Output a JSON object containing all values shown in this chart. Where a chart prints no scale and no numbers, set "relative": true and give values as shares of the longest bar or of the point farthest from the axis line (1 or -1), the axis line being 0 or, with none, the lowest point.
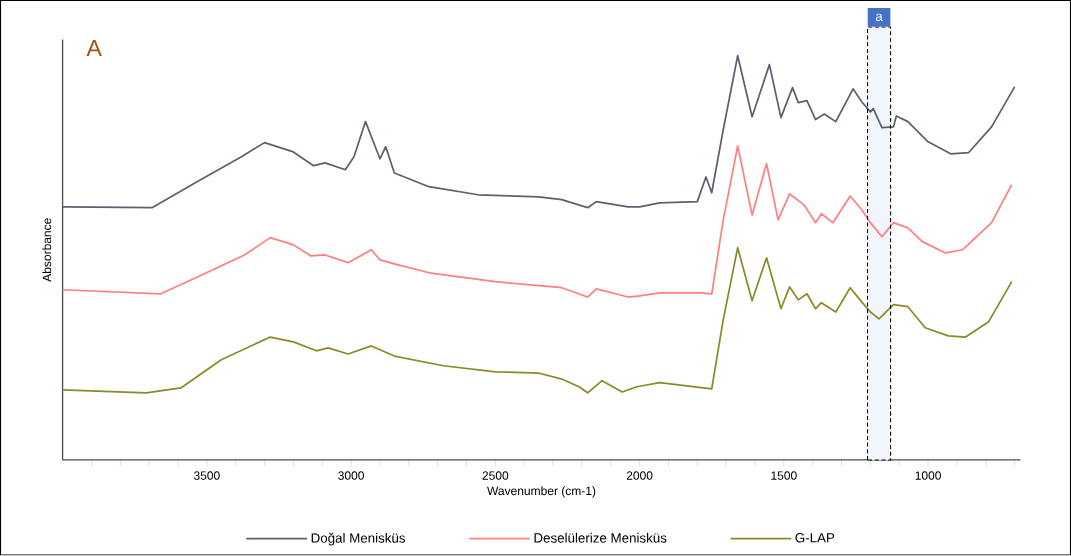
{
  "chart_data": {
    "type": "line",
    "relative": true,
    "xlabel": "Wavenumber (cm-1)",
    "ylabel": "Absorbance",
    "legend": "bottom",
    "xlim": [
      4000,
      680
    ],
    "xticks": [
      {
        "value": 3900,
        "label": null
      },
      {
        "value": 3800,
        "label": null
      },
      {
        "value": 3700,
        "label": null
      },
      {
        "value": 3600,
        "label": null
      },
      3500,
      {
        "value": 3400,
        "label": null
      },
      {
        "value": 3300,
        "label": null
      },
      {
        "value": 3200,
        "label": null
      },
      {
        "value": 3100,
        "label": null
      },
      3000,
      {
        "value": 2900,
        "label": null
      },
      {
        "value": 2800,
        "label": null
      },
      {
        "value": 2700,
        "label": null
      },
      {
        "value": 2600,
        "label": null
      },
      2500,
      {
        "value": 2400,
        "label": null
      },
      {
        "value": 2300,
        "label": null
      },
      {
        "value": 2200,
        "label": null
      },
      {
        "value": 2100,
        "label": null
      },
      2000,
      {
        "value": 1900,
        "label": null
      },
      {
        "value": 1800,
        "label": null
      },
      {
        "value": 1700,
        "label": null
      },
      {
        "value": 1600,
        "label": null
      },
      1500,
      {
        "value": 1400,
        "label": null
      },
      {
        "value": 1300,
        "label": null
      },
      {
        "value": 1200,
        "label": null
      },
      {
        "value": 1100,
        "label": null
      },
      1000,
      {
        "value": 900,
        "label": null
      },
      {
        "value": 800,
        "label": null
      },
      {
        "value": 700,
        "label": null
      }
    ],
    "annotations": [
      "A"
    ],
    "bands": [
      {
        "axis": "x",
        "from": 1210,
        "to": 1130,
        "label": "a",
        "color": "#f2f5fb"
      }
    ],
    "series": [
      {
        "name": "Doğal Menisküs",
        "color": "#5b6170",
        "x": [
          4000,
          3690,
          3540,
          3380,
          3300,
          3200,
          3130,
          3090,
          3020,
          2990,
          2950,
          2900,
          2880,
          2850,
          2730,
          2560,
          2350,
          2270,
          2180,
          2150,
          2040,
          2000,
          1930,
          1800,
          1770,
          1750,
          1710,
          1660,
          1610,
          1550,
          1510,
          1470,
          1450,
          1420,
          1390,
          1360,
          1320,
          1260,
          1230,
          1200,
          1190,
          1160,
          1120,
          1110,
          1070,
          1000,
          920,
          860,
          780,
          700
        ],
        "values": [
          0.626,
          0.624,
          0.686,
          0.75,
          0.785,
          0.762,
          0.728,
          0.735,
          0.718,
          0.75,
          0.837,
          0.745,
          0.775,
          0.71,
          0.676,
          0.656,
          0.651,
          0.644,
          0.624,
          0.639,
          0.626,
          0.626,
          0.636,
          0.639,
          0.7,
          0.661,
          0.817,
          1,
          0.849,
          0.978,
          0.847,
          0.921,
          0.884,
          0.889,
          0.842,
          0.856,
          0.837,
          0.918,
          0.886,
          0.861,
          0.869,
          0.822,
          0.824,
          0.851,
          0.837,
          0.787,
          0.757,
          0.76,
          0.824,
          0.923
        ]
      },
      {
        "name": "Deselülerize Menisküs",
        "color": "#ff8080",
        "x": [
          4000,
          3660,
          3540,
          3370,
          3280,
          3200,
          3140,
          3090,
          3010,
          2930,
          2900,
          2850,
          2730,
          2500,
          2270,
          2180,
          2150,
          2040,
          2000,
          1930,
          1790,
          1750,
          1710,
          1660,
          1610,
          1560,
          1520,
          1480,
          1430,
          1390,
          1370,
          1330,
          1270,
          1230,
          1200,
          1160,
          1120,
          1070,
          1020,
          940,
          880,
          780,
          710
        ],
        "values": [
          0.421,
          0.411,
          0.45,
          0.507,
          0.55,
          0.532,
          0.505,
          0.507,
          0.488,
          0.52,
          0.495,
          0.485,
          0.463,
          0.441,
          0.426,
          0.403,
          0.423,
          0.403,
          0.406,
          0.413,
          0.413,
          0.411,
          0.594,
          0.777,
          0.606,
          0.733,
          0.594,
          0.658,
          0.631,
          0.587,
          0.609,
          0.587,
          0.653,
          0.619,
          0.587,
          0.552,
          0.587,
          0.574,
          0.54,
          0.512,
          0.52,
          0.587,
          0.681
        ]
      },
      {
        "name": "G-LAP",
        "color": "#8a8a2a",
        "x": [
          4000,
          3710,
          3590,
          3450,
          3280,
          3200,
          3120,
          3080,
          3010,
          2930,
          2850,
          2680,
          2500,
          2350,
          2270,
          2210,
          2180,
          2130,
          2060,
          2010,
          1930,
          1750,
          1710,
          1660,
          1610,
          1560,
          1510,
          1480,
          1450,
          1420,
          1390,
          1370,
          1320,
          1270,
          1230,
          1200,
          1170,
          1120,
          1070,
          1010,
          930,
          870,
          790,
          710
        ],
        "values": [
          0.173,
          0.166,
          0.178,
          0.248,
          0.304,
          0.292,
          0.27,
          0.277,
          0.262,
          0.282,
          0.257,
          0.233,
          0.218,
          0.215,
          0.2,
          0.181,
          0.166,
          0.196,
          0.168,
          0.181,
          0.191,
          0.176,
          0.347,
          0.525,
          0.394,
          0.5,
          0.374,
          0.428,
          0.396,
          0.411,
          0.374,
          0.389,
          0.366,
          0.426,
          0.391,
          0.366,
          0.349,
          0.384,
          0.379,
          0.327,
          0.307,
          0.304,
          0.342,
          0.441
        ]
      }
    ]
  }
}
